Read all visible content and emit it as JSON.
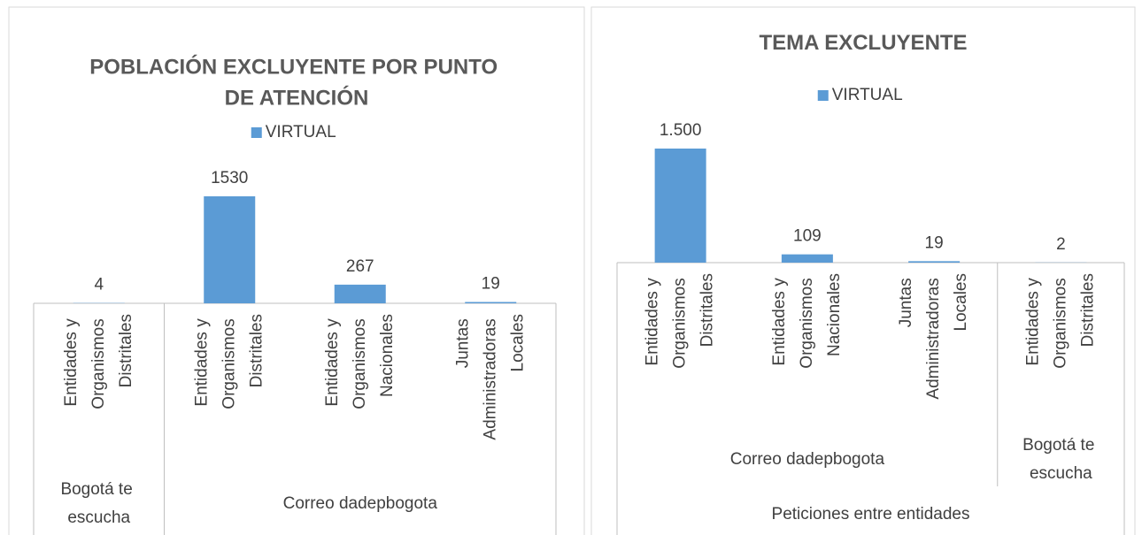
{
  "chart_data": [
    {
      "type": "bar",
      "title": "POBLACIÓN EXCLUYENTE POR PUNTO DE ATENCIÓN",
      "categories": [
        "Entidades y Organismos Distritales",
        "Entidades y Organismos Distritales",
        "Entidades y Organismos Nacionales",
        "Juntas Administradoras Locales"
      ],
      "groups": [
        {
          "label": "Bogotá te escucha",
          "span": 1
        },
        {
          "label": "Correo dadepbogota",
          "span": 3
        }
      ],
      "series": [
        {
          "name": "VIRTUAL",
          "color": "#5b9bd5",
          "values": [
            4,
            1530,
            267,
            19
          ]
        }
      ]
    },
    {
      "type": "bar",
      "title": "TEMA EXCLUYENTE",
      "categories": [
        "Entidades y Organismos Distritales",
        "Entidades y Organismos Nacionales",
        "Juntas Administradoras Locales",
        "Entidades y Organismos Distritales"
      ],
      "groups": [
        {
          "label": "Correo dadepbogota",
          "span": 3
        },
        {
          "label": "Bogotá te escucha",
          "span": 1
        }
      ],
      "outer_groups": [
        {
          "label": "Peticiones entre entidades",
          "span": 4
        }
      ],
      "series": [
        {
          "name": "VIRTUAL",
          "color": "#5b9bd5",
          "values": [
            1500,
            109,
            19,
            2
          ],
          "value_labels": [
            "1.500",
            "109",
            "19",
            "2"
          ]
        }
      ]
    }
  ]
}
